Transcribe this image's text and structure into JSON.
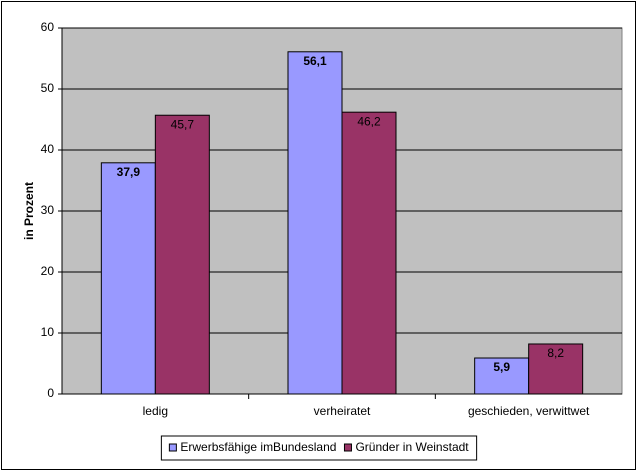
{
  "chart_data": {
    "type": "bar",
    "y_label": "in Prozent",
    "categories": [
      "ledig",
      "verheiratet",
      "geschieden, verwittwet"
    ],
    "series": [
      {
        "name": "Erwerbsfähige imBundesland",
        "color": "#9999ff",
        "values": [
          37.9,
          56.1,
          5.9
        ],
        "value_labels": [
          "37,9",
          "56,1",
          "5,9"
        ]
      },
      {
        "name": "Gründer in Weinstadt",
        "color": "#993366",
        "values": [
          45.7,
          46.2,
          8.2
        ],
        "value_labels": [
          "45,7",
          "46,2",
          "8,2"
        ]
      }
    ],
    "ylim": [
      0,
      60
    ],
    "yticks": [
      0,
      10,
      20,
      30,
      40,
      50,
      60
    ],
    "grid": true,
    "legend": "bottom"
  }
}
